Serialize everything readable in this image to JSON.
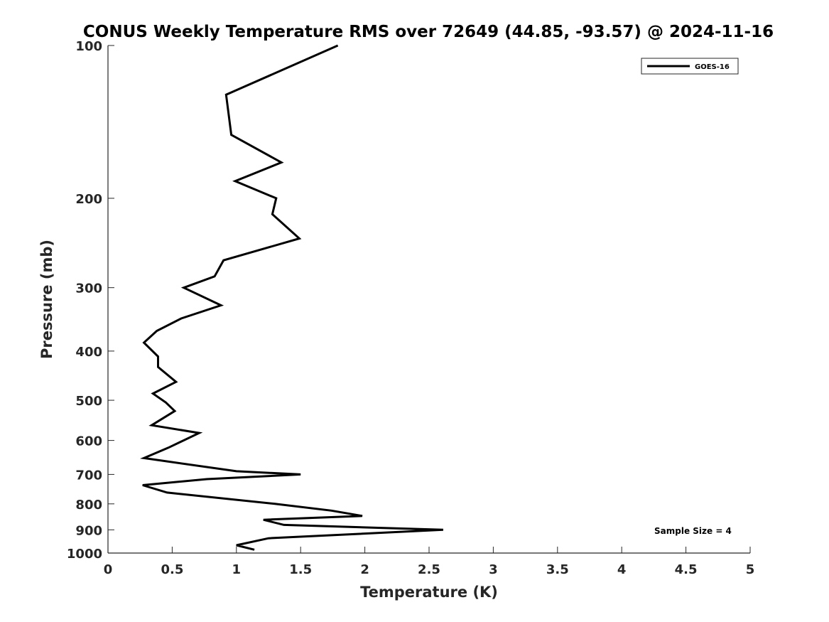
{
  "chart_data": {
    "type": "line",
    "title": "CONUS Weekly Temperature RMS over 72649 (44.85, -93.57) @ 2024-11-16",
    "xlabel": "Temperature (K)",
    "ylabel": "Pressure (mb)",
    "xlim": [
      0,
      5
    ],
    "ylim": [
      1000,
      100
    ],
    "y_scale": "log",
    "y_reversed": true,
    "grid": false,
    "legend_position": "top-right",
    "x_ticks": [
      {
        "v": 0,
        "label": "0"
      },
      {
        "v": 0.5,
        "label": "0.5"
      },
      {
        "v": 1,
        "label": "1"
      },
      {
        "v": 1.5,
        "label": "1.5"
      },
      {
        "v": 2,
        "label": "2"
      },
      {
        "v": 2.5,
        "label": "2.5"
      },
      {
        "v": 3,
        "label": "3"
      },
      {
        "v": 3.5,
        "label": "3.5"
      },
      {
        "v": 4,
        "label": "4"
      },
      {
        "v": 4.5,
        "label": "4.5"
      },
      {
        "v": 5,
        "label": "5"
      }
    ],
    "y_ticks": [
      {
        "v": 100,
        "label": "100"
      },
      {
        "v": 200,
        "label": "200"
      },
      {
        "v": 300,
        "label": "300"
      },
      {
        "v": 400,
        "label": "400"
      },
      {
        "v": 500,
        "label": "500"
      },
      {
        "v": 600,
        "label": "600"
      },
      {
        "v": 700,
        "label": "700"
      },
      {
        "v": 800,
        "label": "800"
      },
      {
        "v": 900,
        "label": "900"
      },
      {
        "v": 1000,
        "label": "1000"
      }
    ],
    "series": [
      {
        "name": "GOES-16",
        "color": "#000000",
        "points": [
          {
            "x": 1.79,
            "p": 100
          },
          {
            "x": 0.92,
            "p": 125
          },
          {
            "x": 0.96,
            "p": 150
          },
          {
            "x": 1.35,
            "p": 170
          },
          {
            "x": 0.99,
            "p": 185
          },
          {
            "x": 1.31,
            "p": 200
          },
          {
            "x": 1.28,
            "p": 215
          },
          {
            "x": 1.49,
            "p": 240
          },
          {
            "x": 0.9,
            "p": 265
          },
          {
            "x": 0.83,
            "p": 285
          },
          {
            "x": 0.59,
            "p": 300
          },
          {
            "x": 0.88,
            "p": 325
          },
          {
            "x": 0.57,
            "p": 345
          },
          {
            "x": 0.38,
            "p": 365
          },
          {
            "x": 0.28,
            "p": 385
          },
          {
            "x": 0.39,
            "p": 410
          },
          {
            "x": 0.39,
            "p": 430
          },
          {
            "x": 0.53,
            "p": 460
          },
          {
            "x": 0.35,
            "p": 485
          },
          {
            "x": 0.45,
            "p": 505
          },
          {
            "x": 0.52,
            "p": 525
          },
          {
            "x": 0.34,
            "p": 560
          },
          {
            "x": 0.71,
            "p": 580
          },
          {
            "x": 0.47,
            "p": 620
          },
          {
            "x": 0.28,
            "p": 650
          },
          {
            "x": 1.0,
            "p": 690
          },
          {
            "x": 1.5,
            "p": 700
          },
          {
            "x": 0.77,
            "p": 715
          },
          {
            "x": 0.27,
            "p": 735
          },
          {
            "x": 0.46,
            "p": 760
          },
          {
            "x": 1.3,
            "p": 800
          },
          {
            "x": 1.74,
            "p": 825
          },
          {
            "x": 1.98,
            "p": 845
          },
          {
            "x": 1.21,
            "p": 860
          },
          {
            "x": 1.37,
            "p": 880
          },
          {
            "x": 2.61,
            "p": 900
          },
          {
            "x": 1.25,
            "p": 935
          },
          {
            "x": 1.0,
            "p": 965
          },
          {
            "x": 1.14,
            "p": 985
          }
        ]
      }
    ],
    "annotation": "Sample Size = 4"
  }
}
